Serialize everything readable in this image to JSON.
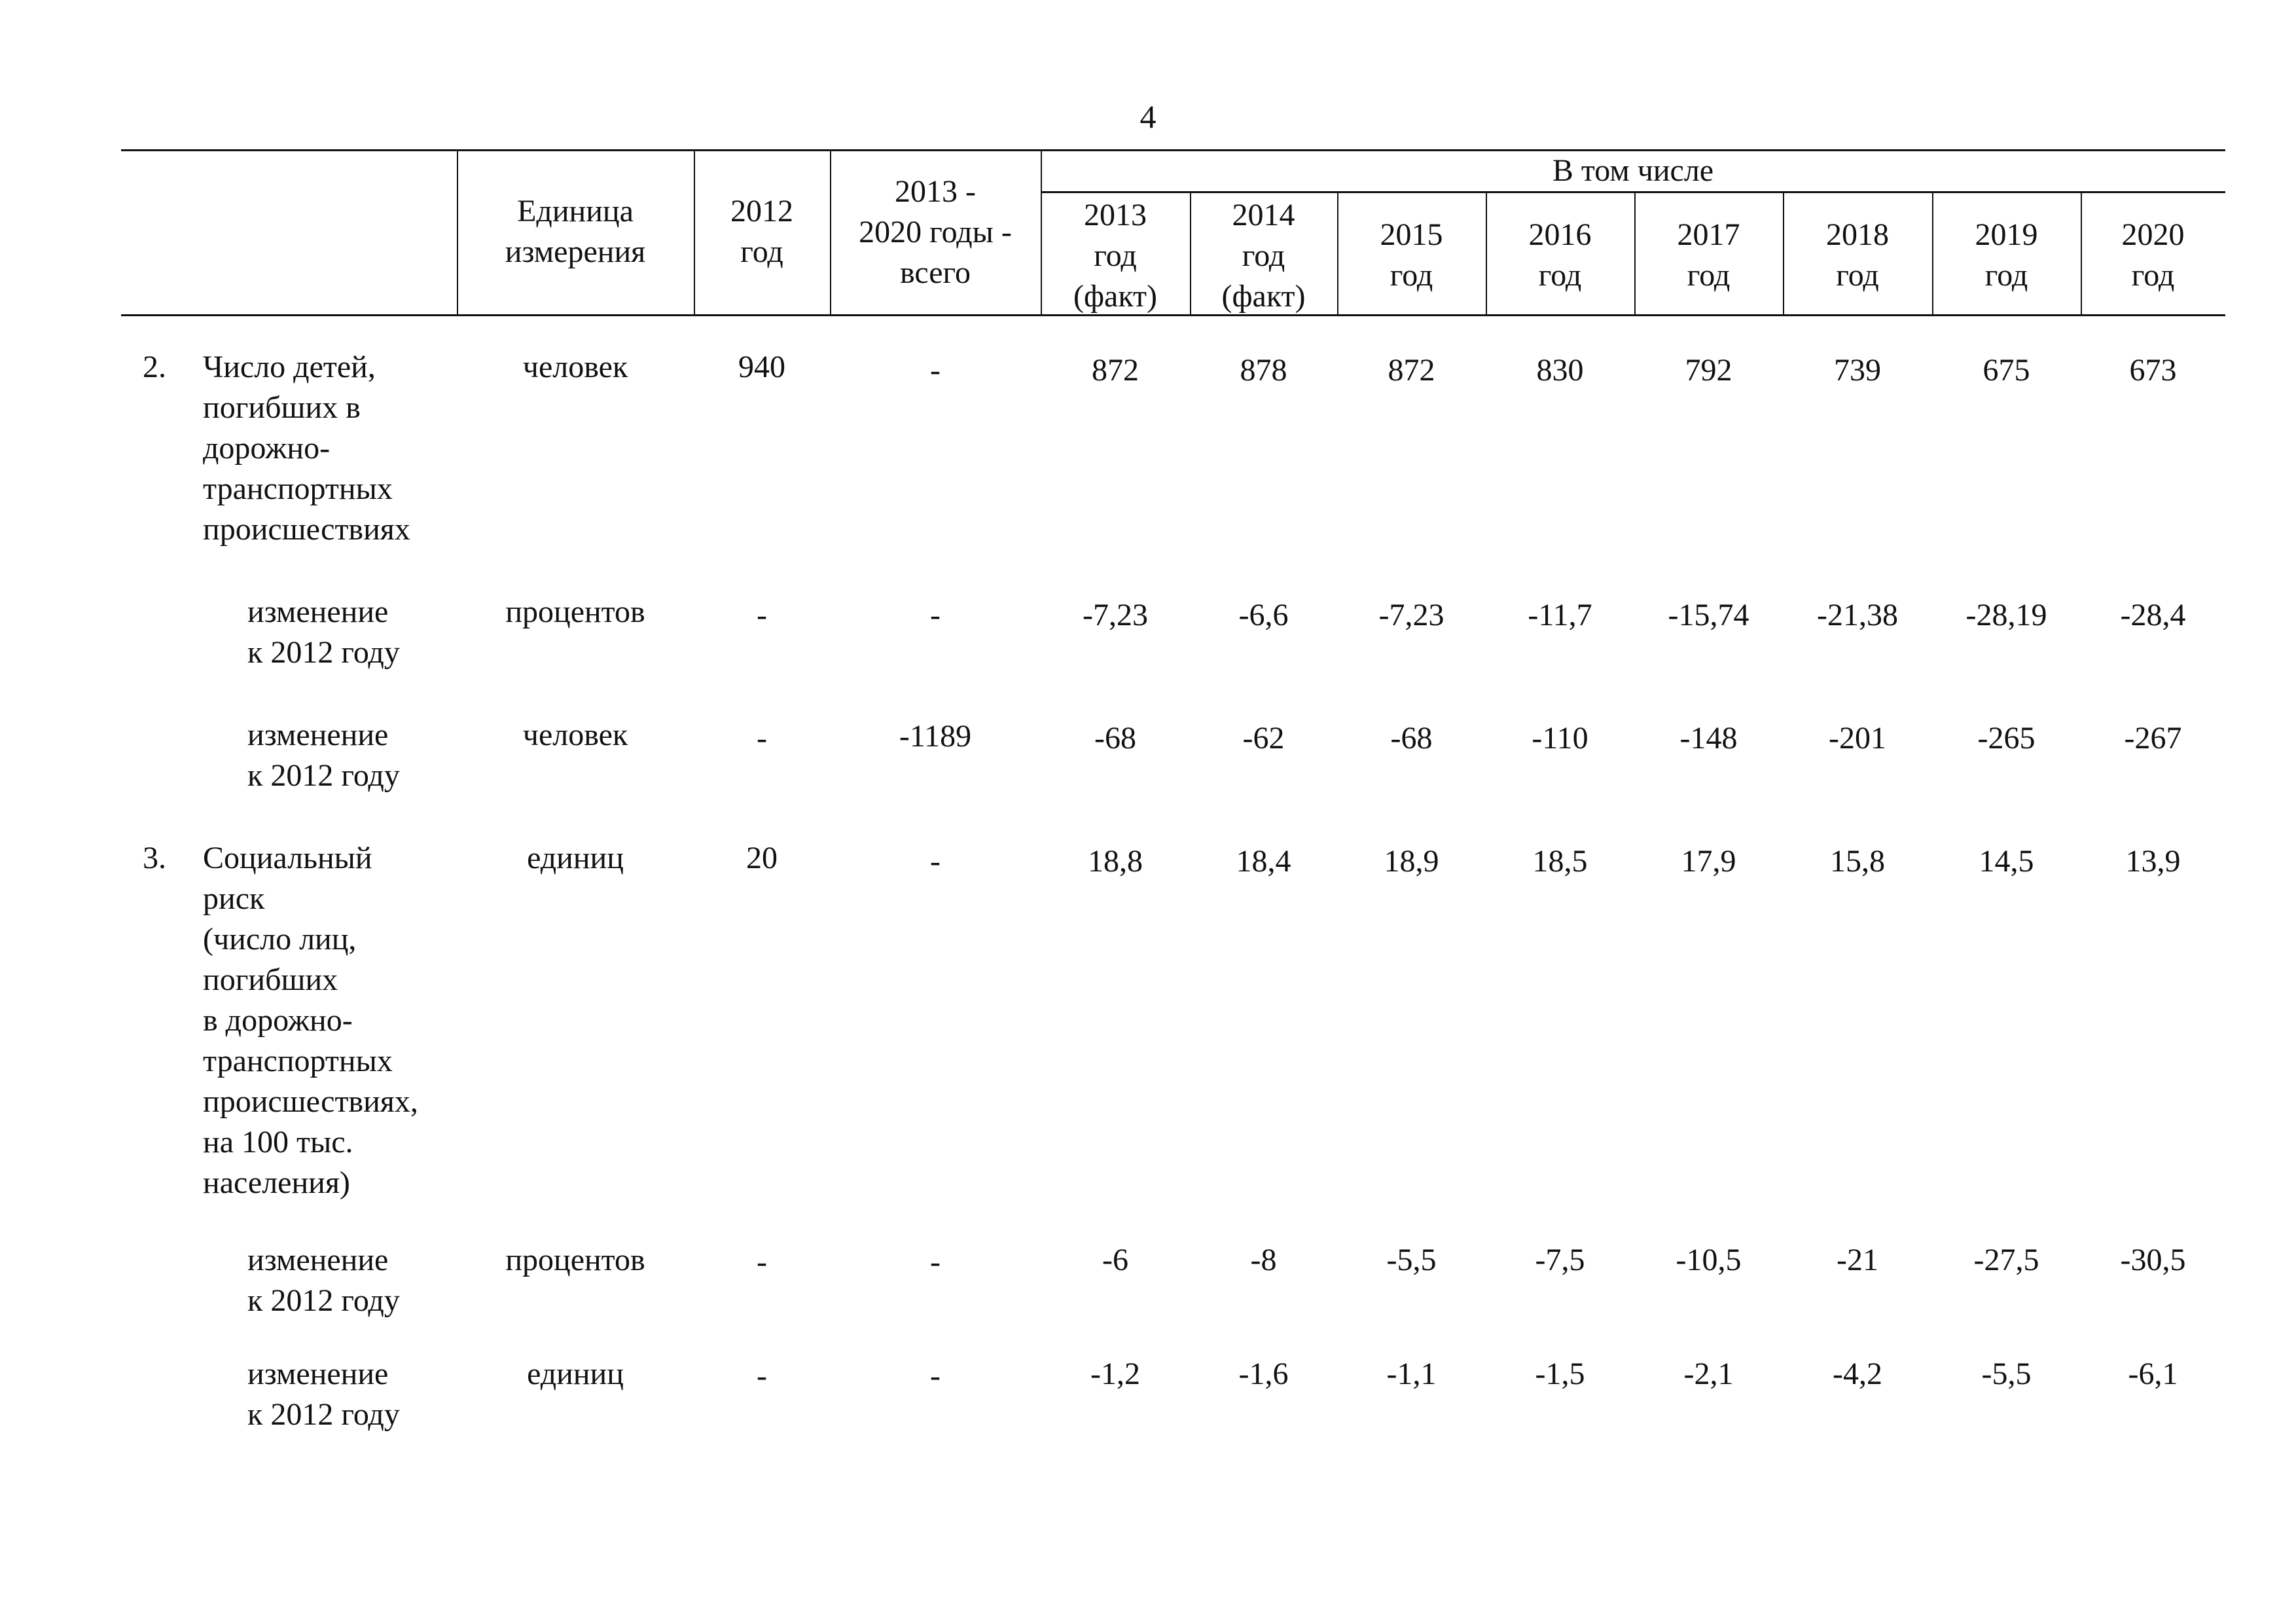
{
  "page_number": "4",
  "table": {
    "header": {
      "unit": "Единица\nизмерения",
      "y2012": "2012\nгод",
      "total": "2013 -\n2020 годы -\nвсего",
      "including": "В том числе",
      "years": [
        "2013\nгод\n(факт)",
        "2014\nгод\n(факт)",
        "2015\nгод",
        "2016\nгод",
        "2017\nгод",
        "2018\nгод",
        "2019\nгод",
        "2020\nгод"
      ]
    },
    "rows": [
      {
        "num": "2.",
        "label": "Число детей,\nпогибших в\nдорожно-\nтранспортных\nпроисшествиях",
        "unit": "человек",
        "v2012": "940",
        "total": "-",
        "values": [
          "872",
          "878",
          "872",
          "830",
          "792",
          "739",
          "675",
          "673"
        ]
      },
      {
        "num": "",
        "label": "изменение\nк 2012 году",
        "unit": "процентов",
        "v2012": "-",
        "total": "-",
        "values": [
          "-7,23",
          "-6,6",
          "-7,23",
          "-11,7",
          "-15,74",
          "-21,38",
          "-28,19",
          "-28,4"
        ]
      },
      {
        "num": "",
        "label": "изменение\nк 2012 году",
        "unit": "человек",
        "v2012": "-",
        "total": "-1189",
        "values": [
          "-68",
          "-62",
          "-68",
          "-110",
          "-148",
          "-201",
          "-265",
          "-267"
        ]
      },
      {
        "num": "3.",
        "label": "Социальный\nриск\n(число лиц,\nпогибших\nв дорожно-\nтранспортных\nпроисшествиях,\nна 100 тыс.\nнаселения)",
        "unit": "единиц",
        "v2012": "20",
        "total": "-",
        "values": [
          "18,8",
          "18,4",
          "18,9",
          "18,5",
          "17,9",
          "15,8",
          "14,5",
          "13,9"
        ]
      },
      {
        "num": "",
        "label": "изменение\nк 2012 году",
        "unit": "процентов",
        "v2012": "-",
        "total": "-",
        "values": [
          "-6",
          "-8",
          "-5,5",
          "-7,5",
          "-10,5",
          "-21",
          "-27,5",
          "-30,5"
        ]
      },
      {
        "num": "",
        "label": "изменение\nк 2012 году",
        "unit": "единиц",
        "v2012": "-",
        "total": "-",
        "values": [
          "-1,2",
          "-1,6",
          "-1,1",
          "-1,5",
          "-2,1",
          "-4,2",
          "-5,5",
          "-6,1"
        ]
      }
    ]
  }
}
